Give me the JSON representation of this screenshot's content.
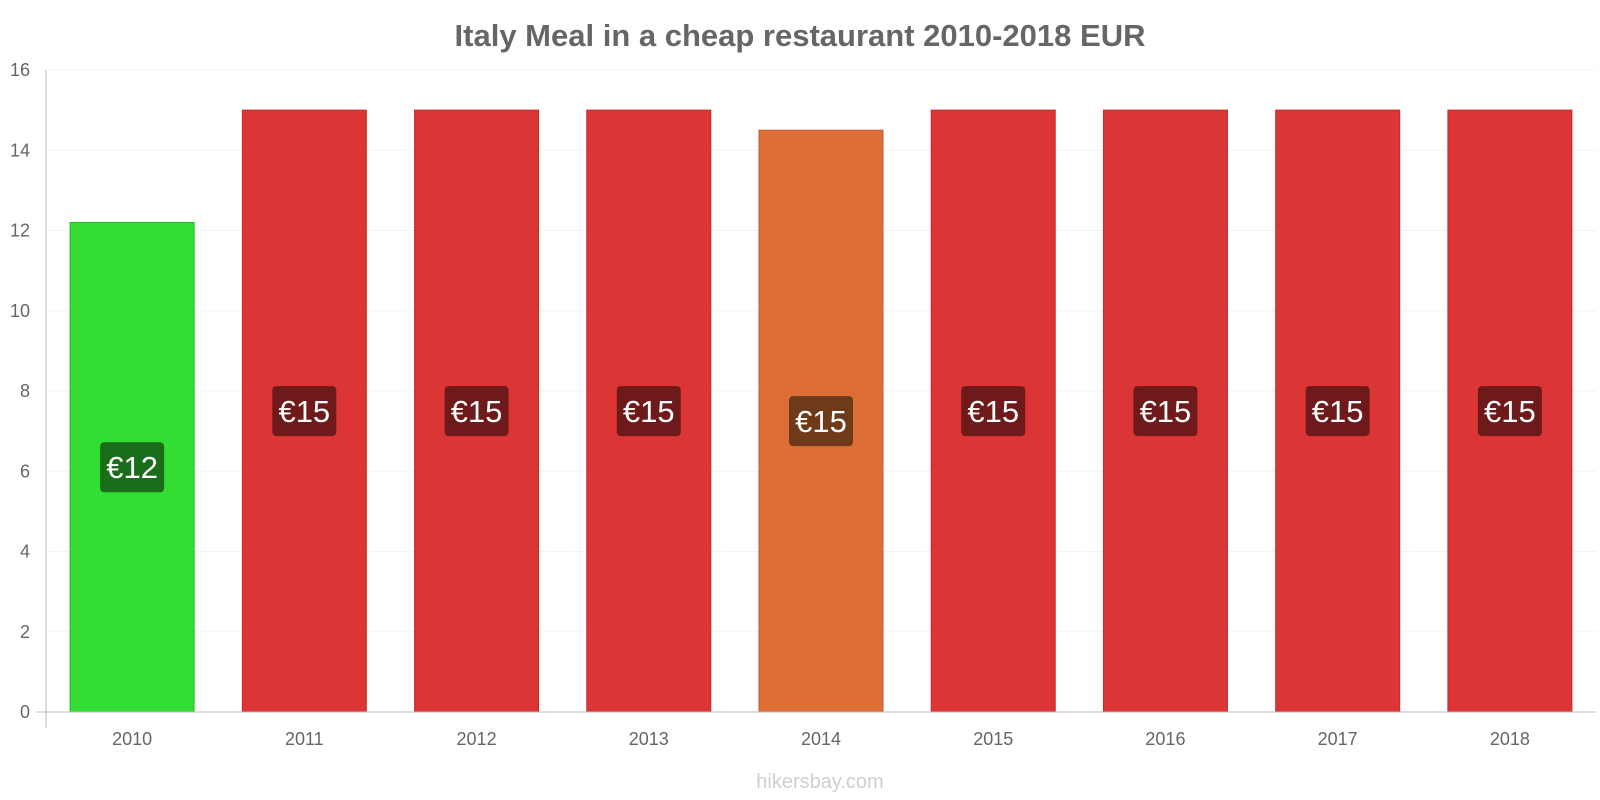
{
  "chart_data": {
    "type": "bar",
    "title": "Italy Meal in a cheap restaurant 2010-2018 EUR",
    "xlabel": "",
    "ylabel": "",
    "ylim": [
      0,
      16
    ],
    "yticks": [
      0,
      2,
      4,
      6,
      8,
      10,
      12,
      14,
      16
    ],
    "grid": true,
    "categories": [
      "2010",
      "2011",
      "2012",
      "2013",
      "2014",
      "2015",
      "2016",
      "2017",
      "2018"
    ],
    "values": [
      12.2,
      15,
      15,
      15,
      14.5,
      15,
      15,
      15,
      15
    ],
    "data_labels": [
      "€12",
      "€15",
      "€15",
      "€15",
      "€15",
      "€15",
      "€15",
      "€15",
      "€15"
    ],
    "colors": {
      "low": {
        "bar": "#33dd33",
        "border": "#22bb22",
        "label_bg": "#1a6e1a"
      },
      "high": {
        "bar": "#dc3535",
        "border": "#c42a2a",
        "label_bg": "#6e1a1a"
      },
      "mid": {
        "bar": "#dd6e35",
        "border": "#c45a28",
        "label_bg": "#6e3a1a"
      }
    },
    "bar_color_keys": [
      "low",
      "high",
      "high",
      "high",
      "mid",
      "high",
      "high",
      "high",
      "high"
    ]
  },
  "watermark": "hikersbay.com"
}
